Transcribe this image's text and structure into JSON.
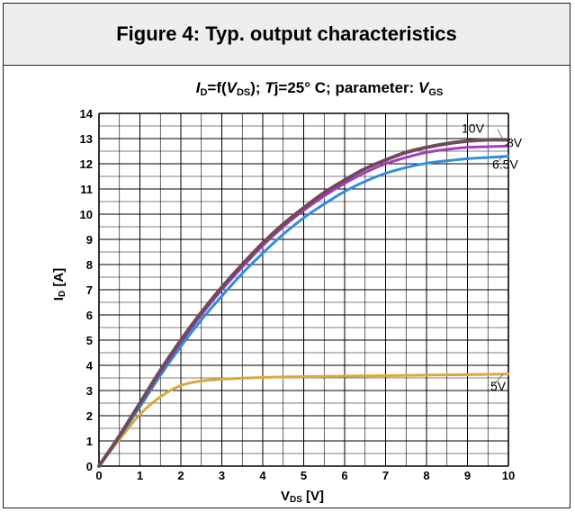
{
  "header": {
    "title": "Figure 4: Typ. output characteristics"
  },
  "chart_data": {
    "type": "line",
    "subtitle": {
      "i": "I",
      "d_sub": "D",
      "eq_f": "=f(",
      "v": "V",
      "ds_sub": "DS",
      "close_semi": "); ",
      "t": "T",
      "rest": "j=25° C; parameter: ",
      "v2": "V",
      "gs_sub": "GS"
    },
    "xlabel": {
      "main": "V",
      "sub": "DS",
      "unit": " [V]"
    },
    "ylabel": {
      "main": "I",
      "sub": "D",
      "unit": " [A]"
    },
    "xlim": [
      0,
      10
    ],
    "ylim": [
      0,
      14
    ],
    "x_ticks": [
      "0",
      "1",
      "2",
      "3",
      "4",
      "5",
      "6",
      "7",
      "8",
      "9",
      "10"
    ],
    "y_ticks": [
      "0",
      "1",
      "2",
      "3",
      "4",
      "5",
      "6",
      "7",
      "8",
      "9",
      "10",
      "11",
      "12",
      "13",
      "14"
    ],
    "grid": true,
    "series": [
      {
        "name": "10V",
        "color": "#6e4b5a",
        "width": 4,
        "x": [
          0,
          0.5,
          1,
          1.5,
          2,
          2.5,
          3,
          3.5,
          4,
          4.5,
          5,
          5.5,
          6,
          6.5,
          7,
          7.5,
          8,
          8.5,
          9,
          9.5,
          10
        ],
        "y": [
          0,
          1.2,
          2.5,
          3.8,
          5.0,
          6.1,
          7.1,
          8.0,
          8.85,
          9.6,
          10.25,
          10.85,
          11.35,
          11.8,
          12.15,
          12.45,
          12.65,
          12.8,
          12.9,
          12.95,
          12.95
        ]
      },
      {
        "name": "8V",
        "color": "#a83cc0",
        "width": 3,
        "x": [
          0,
          0.5,
          1,
          1.5,
          2,
          2.5,
          3,
          3.5,
          4,
          4.5,
          5,
          5.5,
          6,
          6.5,
          7,
          7.5,
          8,
          8.5,
          9,
          9.5,
          10
        ],
        "y": [
          0,
          1.2,
          2.45,
          3.72,
          4.9,
          6.0,
          7.0,
          7.9,
          8.75,
          9.5,
          10.15,
          10.72,
          11.22,
          11.65,
          12.0,
          12.25,
          12.45,
          12.57,
          12.65,
          12.68,
          12.7
        ]
      },
      {
        "name": "6.5V",
        "color": "#2e8fdc",
        "width": 3,
        "x": [
          0,
          0.5,
          1,
          1.5,
          2,
          2.5,
          3,
          3.5,
          4,
          4.5,
          5,
          5.5,
          6,
          6.5,
          7,
          7.5,
          8,
          8.5,
          9,
          9.5,
          10
        ],
        "y": [
          0,
          1.15,
          2.35,
          3.6,
          4.75,
          5.8,
          6.75,
          7.65,
          8.45,
          9.2,
          9.85,
          10.4,
          10.9,
          11.3,
          11.62,
          11.85,
          12.02,
          12.12,
          12.2,
          12.25,
          12.3
        ]
      },
      {
        "name": "5V",
        "color": "#d9a93a",
        "width": 3,
        "x": [
          0,
          0.5,
          1,
          1.5,
          2,
          2.5,
          3,
          3.5,
          4,
          4.5,
          5,
          6,
          7,
          8,
          9,
          10
        ],
        "y": [
          0,
          1.05,
          2.05,
          2.75,
          3.2,
          3.38,
          3.45,
          3.49,
          3.52,
          3.54,
          3.55,
          3.57,
          3.59,
          3.61,
          3.63,
          3.65
        ]
      }
    ]
  }
}
